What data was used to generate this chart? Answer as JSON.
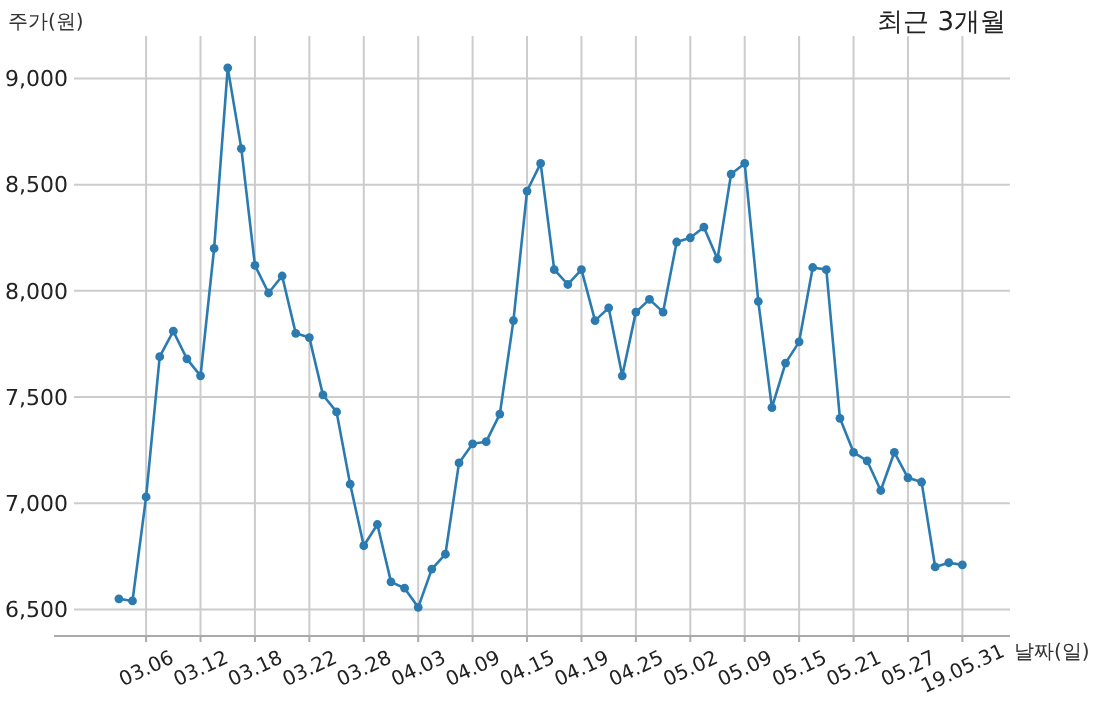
{
  "chart_data": {
    "type": "line",
    "title": "최근 3개월",
    "xlabel": "날짜(일)",
    "ylabel": "주가(원)",
    "categories": [
      null,
      null,
      "03.06",
      null,
      null,
      null,
      "03.12",
      null,
      null,
      null,
      "03.18",
      null,
      null,
      null,
      "03.22",
      null,
      null,
      null,
      "03.28",
      null,
      null,
      null,
      "04.03",
      null,
      null,
      null,
      "04.09",
      null,
      null,
      null,
      "04.15",
      null,
      null,
      null,
      "04.19",
      null,
      null,
      null,
      "04.25",
      null,
      null,
      null,
      "05.02",
      null,
      null,
      null,
      "05.09",
      null,
      null,
      null,
      "05.15",
      null,
      null,
      null,
      "05.21",
      null,
      null,
      null,
      "05.27",
      null,
      null,
      null,
      "19.05.31"
    ],
    "series": [
      {
        "color": "#2b7bb0",
        "values": [
          6550,
          6540,
          7030,
          7690,
          7810,
          7680,
          7600,
          8200,
          9050,
          8670,
          8120,
          7990,
          8070,
          7800,
          7780,
          7510,
          7430,
          7090,
          6800,
          6900,
          6630,
          6600,
          6510,
          6690,
          6760,
          7190,
          7280,
          7290,
          7420,
          7860,
          8470,
          8600,
          8100,
          8030,
          8100,
          7860,
          7920,
          7600,
          7900,
          7960,
          7900,
          8230,
          8250,
          8300,
          8150,
          8550,
          8600,
          7950,
          7450,
          7660,
          7760,
          8110,
          8100,
          7400,
          7240,
          7200,
          7060,
          7240,
          7120,
          7100,
          6700,
          6720,
          6710
        ]
      }
    ],
    "ylim": [
      6375,
      9200
    ],
    "yticks": [
      {
        "value": 6500,
        "label": "6,500"
      },
      {
        "value": 7000,
        "label": "7,000"
      },
      {
        "value": 7500,
        "label": "7,500"
      },
      {
        "value": 8000,
        "label": "8,000"
      },
      {
        "value": 8500,
        "label": "8,500"
      },
      {
        "value": 9000,
        "label": "9,000"
      }
    ],
    "grid": true,
    "marker": "circle",
    "line_style": "solid"
  }
}
